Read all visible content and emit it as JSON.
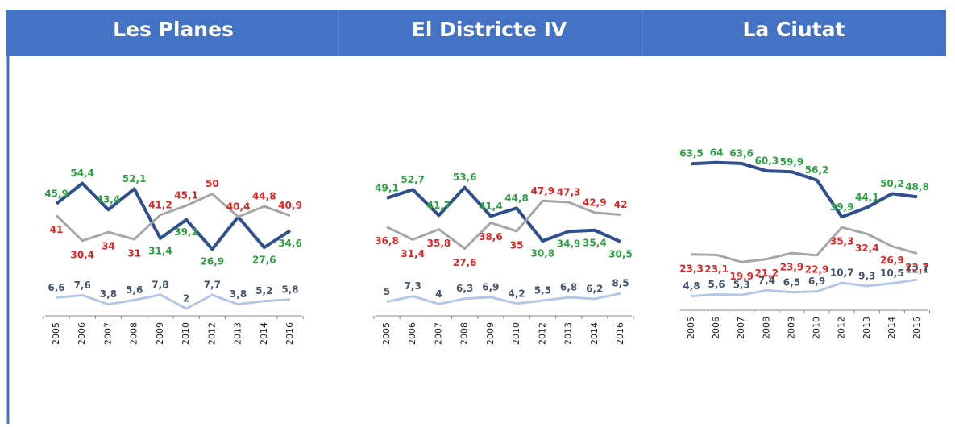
{
  "chart_data": [
    {
      "type": "line",
      "title": "Les Planes",
      "categories": [
        "2005",
        "2006",
        "2007",
        "2008",
        "2009",
        "2010",
        "2012",
        "2013",
        "2014",
        "2016"
      ],
      "ylim": [
        0,
        60
      ],
      "series": [
        {
          "color": "#2f4f8f",
          "label_color": "#2ea043",
          "values": [
            45.9,
            54.4,
            43.4,
            52.1,
            31.4,
            39.2,
            26.9,
            40.4,
            27.6,
            34.6
          ],
          "value_labels": [
            "45,9",
            "54,4",
            "43,4",
            "52,1",
            "31,4",
            "39,2",
            "26,9",
            "40,4",
            "27,6",
            "34,6"
          ]
        },
        {
          "color": "#a6a6a6",
          "label_color": "#e02424",
          "values": [
            41,
            30.4,
            34,
            31,
            41.2,
            45.1,
            50,
            40.4,
            44.8,
            40.9
          ],
          "value_labels": [
            "41",
            "30,4",
            "34",
            "31",
            "41,2",
            "45,1",
            "50",
            "40,4",
            "44,8",
            "40,9"
          ]
        },
        {
          "color": "#b4c7e7",
          "label_color": "#44546a",
          "values": [
            6.6,
            7.6,
            3.8,
            5.6,
            7.8,
            2,
            7.7,
            3.8,
            5.2,
            5.8
          ],
          "value_labels": [
            "6,6",
            "7,6",
            "3,8",
            "5,6",
            "7,8",
            "2",
            "7,7",
            "3,8",
            "5,2",
            "5,8"
          ]
        }
      ]
    },
    {
      "type": "line",
      "title": "El Districte IV",
      "categories": [
        "2005",
        "2006",
        "2007",
        "2008",
        "2009",
        "2010",
        "2012",
        "2013",
        "2014",
        "2016"
      ],
      "ylim": [
        0,
        60
      ],
      "series": [
        {
          "color": "#2f4f8f",
          "label_color": "#2ea043",
          "values": [
            49.1,
            52.7,
            41.7,
            53.6,
            41.4,
            44.8,
            30.8,
            34.9,
            35.4,
            30.5
          ],
          "value_labels": [
            "49,1",
            "52,7",
            "41,7",
            "53,6",
            "41,4",
            "44,8",
            "30,8",
            "34,9",
            "35,4",
            "30,5"
          ]
        },
        {
          "color": "#a6a6a6",
          "label_color": "#e02424",
          "values": [
            36.8,
            31.4,
            35.8,
            27.6,
            38.6,
            35,
            47.9,
            47.3,
            42.9,
            42
          ],
          "value_labels": [
            "36,8",
            "31,4",
            "35,8",
            "27,6",
            "38,6",
            "35",
            "47,9",
            "47,3",
            "42,9",
            "42"
          ]
        },
        {
          "color": "#b4c7e7",
          "label_color": "#44546a",
          "values": [
            5,
            7.3,
            4,
            6.3,
            6.9,
            4.2,
            5.5,
            6.8,
            6.2,
            8.5
          ],
          "value_labels": [
            "5",
            "7,3",
            "4",
            "6,3",
            "6,9",
            "4,2",
            "5,5",
            "6,8",
            "6,2",
            "8,5"
          ]
        }
      ]
    },
    {
      "type": "line",
      "title": "La Ciutat",
      "categories": [
        "2005",
        "2006",
        "2007",
        "2008",
        "2009",
        "2010",
        "2012",
        "2013",
        "2014",
        "2016"
      ],
      "ylim": [
        0,
        70
      ],
      "series": [
        {
          "color": "#2f4f8f",
          "label_color": "#2ea043",
          "values": [
            63.5,
            64,
            63.6,
            60.3,
            59.9,
            56.2,
            39.9,
            44.1,
            50.2,
            48.8
          ],
          "value_labels": [
            "63,5",
            "64",
            "63,6",
            "60,3",
            "59,9",
            "56,2",
            "39,9",
            "44,1",
            "50,2",
            "48,8"
          ]
        },
        {
          "color": "#a6a6a6",
          "label_color": "#e02424",
          "values": [
            23.3,
            23.1,
            19.9,
            21.2,
            23.9,
            22.9,
            35.3,
            32.4,
            26.9,
            23.7
          ],
          "value_labels": [
            "23,3",
            "23,1",
            "19,9",
            "21,2",
            "23,9",
            "22,9",
            "35,3",
            "32,4",
            "26,9",
            "23,7"
          ]
        },
        {
          "color": "#b4c7e7",
          "label_color": "#44546a",
          "values": [
            4.8,
            5.6,
            5.3,
            7.4,
            6.5,
            6.9,
            10.7,
            9.3,
            10.5,
            12.1
          ],
          "value_labels": [
            "4,8",
            "5,6",
            "5,3",
            "7,4",
            "6,5",
            "6,9",
            "10,7",
            "9,3",
            "10,5",
            "12,1"
          ]
        }
      ]
    }
  ]
}
